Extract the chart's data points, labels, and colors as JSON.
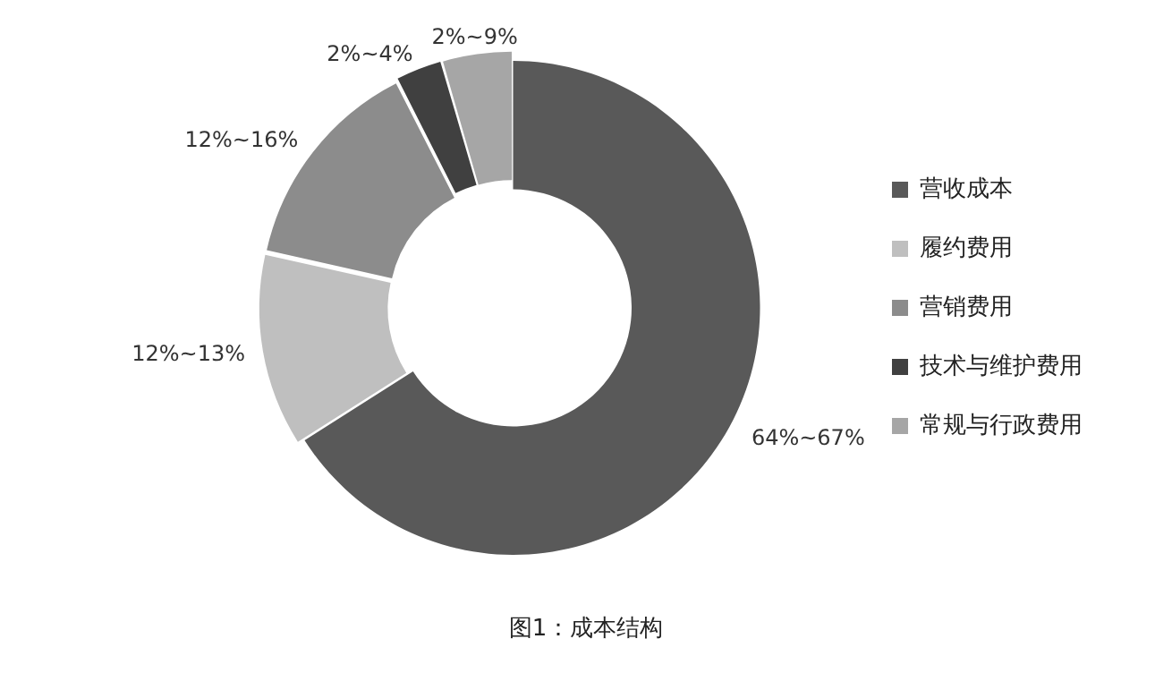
{
  "chart_data": {
    "type": "donut",
    "categories": [
      "营收成本",
      "履约费用",
      "营销费用",
      "技术与维护费用",
      "常规与行政费用"
    ],
    "values": [
      66,
      12.5,
      14,
      3,
      4.5
    ],
    "colors": [
      "#595959",
      "#bfbfbf",
      "#8c8c8c",
      "#404040",
      "#a6a6a6"
    ],
    "legend": "right",
    "annotations": [
      "图1：成本结构",
      {
        "text": "64%~67%",
        "x": "营收成本"
      },
      {
        "text": "12%~13%",
        "x": "履约费用"
      },
      {
        "text": "12%~16%",
        "x": "营销费用"
      },
      {
        "text": "2%~4%",
        "x": "技术与维护费用"
      },
      {
        "text": "2%~9%",
        "x": "常规与行政费用"
      }
    ]
  }
}
